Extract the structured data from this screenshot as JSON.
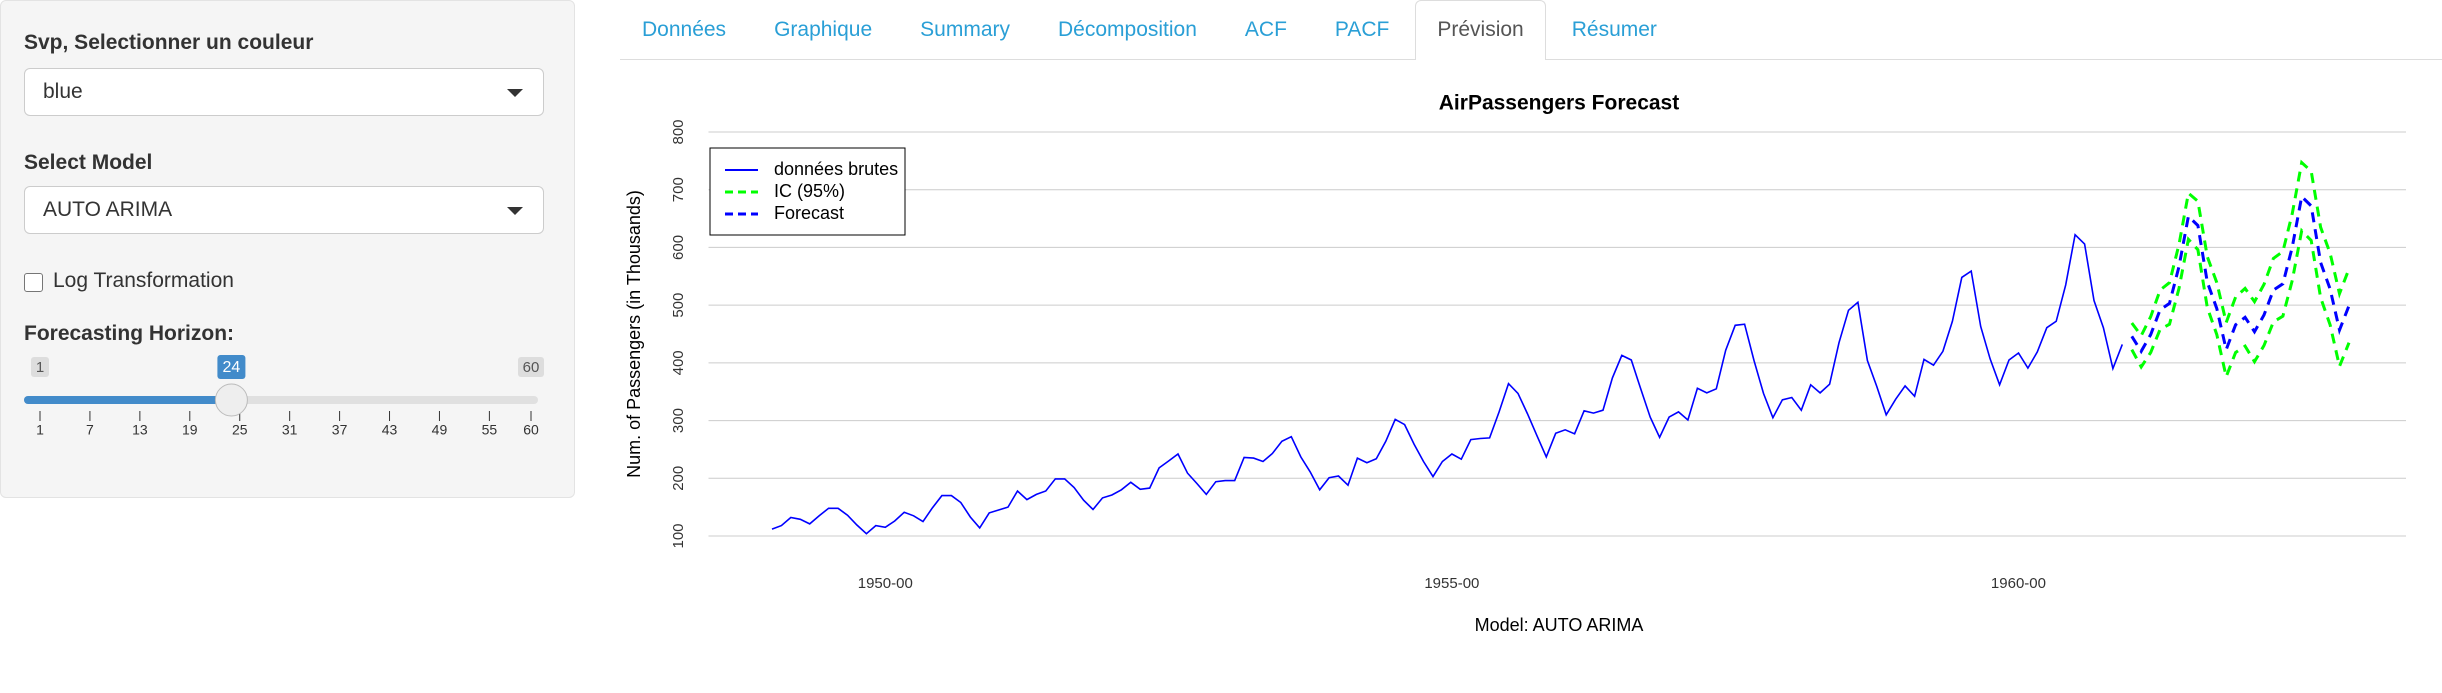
{
  "sidebar": {
    "color_label": "Svp, Selectionner un couleur",
    "color_value": "blue",
    "model_label": "Select Model",
    "model_value": "AUTO ARIMA",
    "log_label": "Log Transformation",
    "horizon_label": "Forecasting Horizon:",
    "slider": {
      "min": 1,
      "max": 60,
      "value": 24,
      "ticks": [
        1,
        7,
        13,
        19,
        25,
        31,
        37,
        43,
        49,
        55,
        60
      ]
    }
  },
  "tabs": [
    {
      "label": "Données"
    },
    {
      "label": "Graphique"
    },
    {
      "label": "Summary"
    },
    {
      "label": "Décomposition"
    },
    {
      "label": "ACF"
    },
    {
      "label": "PACF"
    },
    {
      "label": "Prévision",
      "active": true
    },
    {
      "label": "Résumer"
    }
  ],
  "chart_data": {
    "type": "line",
    "title": "AirPassengers Forecast",
    "x_label": "Model: AUTO ARIMA",
    "y_label": "Num. of Passengers (in Thousands)",
    "xlim": [
      1948.44,
      1963.42
    ],
    "xticks": [
      {
        "value": 1950,
        "label": "1950-00"
      },
      {
        "value": 1955,
        "label": "1955-00"
      },
      {
        "value": 1960,
        "label": "1960-00"
      }
    ],
    "ylim": [
      100,
      800
    ],
    "yticks": [
      100,
      200,
      300,
      400,
      500,
      600,
      700,
      800
    ],
    "grid": true,
    "legend": "top-left",
    "series": [
      {
        "name": "données brutes",
        "color": "#0000ff",
        "line_style": "solid",
        "x": [
          1949,
          1949.0833,
          1949.1667,
          1949.25,
          1949.3333,
          1949.4167,
          1949.5,
          1949.5833,
          1949.6667,
          1949.75,
          1949.8333,
          1949.9167,
          1950,
          1950.0833,
          1950.1667,
          1950.25,
          1950.3333,
          1950.4167,
          1950.5,
          1950.5833,
          1950.6667,
          1950.75,
          1950.8333,
          1950.9167,
          1951,
          1951.0833,
          1951.1667,
          1951.25,
          1951.3333,
          1951.4167,
          1951.5,
          1951.5833,
          1951.6667,
          1951.75,
          1951.8333,
          1951.9167,
          1952,
          1952.0833,
          1952.1667,
          1952.25,
          1952.3333,
          1952.4167,
          1952.5,
          1952.5833,
          1952.6667,
          1952.75,
          1952.8333,
          1952.9167,
          1953,
          1953.0833,
          1953.1667,
          1953.25,
          1953.3333,
          1953.4167,
          1953.5,
          1953.5833,
          1953.6667,
          1953.75,
          1953.8333,
          1953.9167,
          1954,
          1954.0833,
          1954.1667,
          1954.25,
          1954.3333,
          1954.4167,
          1954.5,
          1954.5833,
          1954.6667,
          1954.75,
          1954.8333,
          1954.9167,
          1955,
          1955.0833,
          1955.1667,
          1955.25,
          1955.3333,
          1955.4167,
          1955.5,
          1955.5833,
          1955.6667,
          1955.75,
          1955.8333,
          1955.9167,
          1956,
          1956.0833,
          1956.1667,
          1956.25,
          1956.3333,
          1956.4167,
          1956.5,
          1956.5833,
          1956.6667,
          1956.75,
          1956.8333,
          1956.9167,
          1957,
          1957.0833,
          1957.1667,
          1957.25,
          1957.3333,
          1957.4167,
          1957.5,
          1957.5833,
          1957.6667,
          1957.75,
          1957.8333,
          1957.9167,
          1958,
          1958.0833,
          1958.1667,
          1958.25,
          1958.3333,
          1958.4167,
          1958.5,
          1958.5833,
          1958.6667,
          1958.75,
          1958.8333,
          1958.9167,
          1959,
          1959.0833,
          1959.1667,
          1959.25,
          1959.3333,
          1959.4167,
          1959.5,
          1959.5833,
          1959.6667,
          1959.75,
          1959.8333,
          1959.9167,
          1960,
          1960.0833,
          1960.1667,
          1960.25,
          1960.3333,
          1960.4167,
          1960.5,
          1960.5833,
          1960.6667,
          1960.75,
          1960.8333,
          1960.9167
        ],
        "values": [
          112,
          118,
          132,
          129,
          121,
          135,
          148,
          148,
          136,
          119,
          104,
          118,
          115,
          126,
          141,
          135,
          125,
          149,
          170,
          170,
          158,
          133,
          114,
          140,
          145,
          150,
          178,
          163,
          172,
          178,
          199,
          199,
          184,
          162,
          146,
          166,
          171,
          180,
          193,
          181,
          183,
          218,
          230,
          242,
          209,
          191,
          172,
          194,
          196,
          196,
          236,
          235,
          229,
          243,
          264,
          272,
          237,
          211,
          180,
          201,
          204,
          188,
          235,
          227,
          234,
          264,
          302,
          293,
          259,
          229,
          203,
          229,
          242,
          233,
          267,
          269,
          270,
          315,
          364,
          347,
          312,
          274,
          237,
          278,
          284,
          277,
          317,
          313,
          318,
          374,
          413,
          405,
          355,
          306,
          271,
          306,
          315,
          301,
          356,
          348,
          355,
          422,
          465,
          467,
          404,
          347,
          305,
          336,
          340,
          318,
          362,
          348,
          363,
          435,
          491,
          505,
          404,
          359,
          310,
          337,
          360,
          342,
          406,
          396,
          420,
          472,
          548,
          559,
          463,
          407,
          362,
          405,
          417,
          391,
          419,
          461,
          472,
          535,
          622,
          606,
          508,
          461,
          390,
          432
        ]
      },
      {
        "name": "IC (95%)",
        "color": "#00ff00",
        "line_style": "dashed",
        "x": [
          1961,
          1961.0833,
          1961.1667,
          1961.25,
          1961.3333,
          1961.4167,
          1961.5,
          1961.5833,
          1961.6667,
          1961.75,
          1961.8333,
          1961.9167,
          1962,
          1962.0833,
          1962.1667,
          1962.25,
          1962.3333,
          1962.4167,
          1962.5,
          1962.5833,
          1962.6667,
          1962.75,
          1962.8333,
          1962.9167
        ],
        "lower": [
          423,
          393,
          418,
          458,
          467,
          529,
          614,
          596,
          496,
          449,
          376,
          418,
          429,
          402,
          430,
          471,
          481,
          543,
          629,
          612,
          513,
          466,
          394,
          435
        ],
        "upper": [
          469,
          447,
          480,
          526,
          539,
          605,
          694,
          680,
          584,
          539,
          470,
          514,
          529,
          506,
          536,
          581,
          593,
          659,
          747,
          732,
          635,
          590,
          520,
          563
        ]
      },
      {
        "name": "Forecast",
        "color": "#0000ff",
        "line_style": "dashed",
        "x": [
          1961,
          1961.0833,
          1961.1667,
          1961.25,
          1961.3333,
          1961.4167,
          1961.5,
          1961.5833,
          1961.6667,
          1961.75,
          1961.8333,
          1961.9167,
          1962,
          1962.0833,
          1962.1667,
          1962.25,
          1962.3333,
          1962.4167,
          1962.5,
          1962.5833,
          1962.6667,
          1962.75,
          1962.8333,
          1962.9167
        ],
        "values": [
          446,
          420,
          449,
          492,
          503,
          567,
          654,
          638,
          540,
          494,
          423,
          466,
          479,
          454,
          483,
          526,
          537,
          601,
          688,
          672,
          574,
          528,
          457,
          499
        ]
      }
    ]
  }
}
